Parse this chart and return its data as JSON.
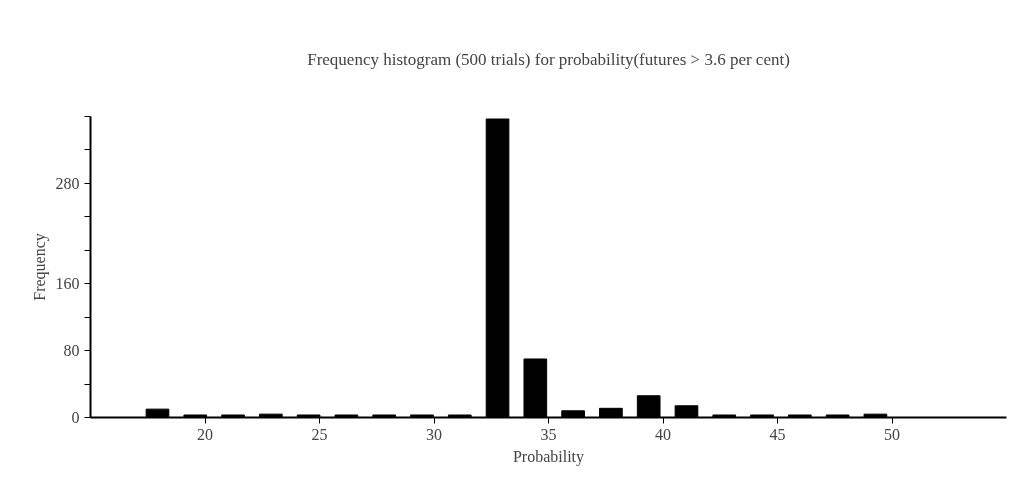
{
  "chart_data": {
    "type": "histogram",
    "title": "Frequency histogram (500 trials) for probability(futures > 3.6 per cent)",
    "xlabel": "Probability",
    "ylabel": "Frequency",
    "bins": [
      17.1,
      18.75,
      20.4,
      22.05,
      23.7,
      25.35,
      27.0,
      28.65,
      30.3,
      31.95,
      33.6,
      35.25,
      36.9,
      38.55,
      40.2,
      41.85,
      43.5,
      45.15,
      46.8,
      48.45,
      50.1
    ],
    "values": [
      10,
      3,
      3,
      4,
      3,
      3,
      3,
      3,
      3,
      357,
      70,
      8,
      11,
      26,
      14,
      3,
      3,
      3,
      3,
      4
    ],
    "color": "#000000",
    "xlim": [
      15,
      55
    ],
    "xticks": [
      20,
      25,
      30,
      35,
      40,
      45,
      50
    ],
    "ylim": [
      0,
      360
    ],
    "yticks": [
      0,
      {
        "value": 40,
        "label": null
      },
      80,
      {
        "value": 120,
        "label": null
      },
      160,
      {
        "value": 200,
        "label": null
      },
      {
        "value": 240,
        "label": null
      },
      280,
      {
        "value": 320,
        "label": null
      },
      {
        "value": 360,
        "label": null
      }
    ],
    "grid": false
  }
}
